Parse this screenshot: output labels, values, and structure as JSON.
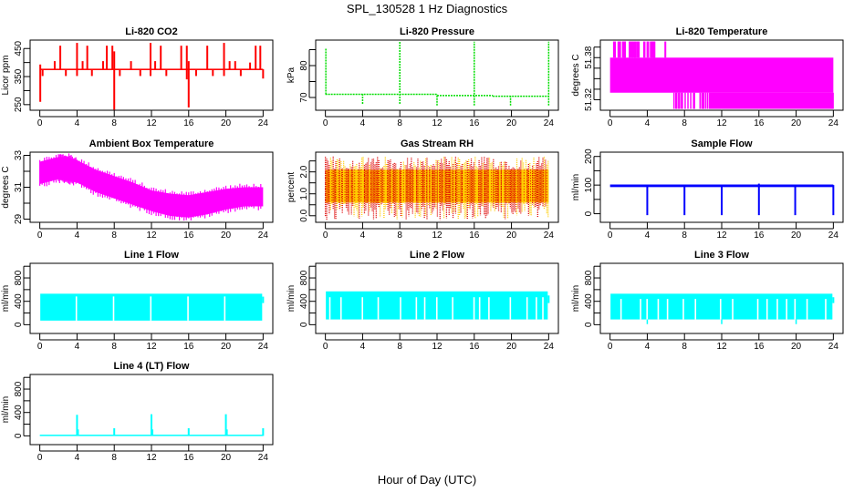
{
  "figure": {
    "title": "SPL_130528  1 Hz Diagnostics",
    "xlabel": "Hour of Day (UTC)"
  },
  "chart_data": [
    {
      "type": "line",
      "title": "Li-820 CO2",
      "ylabel": "Licor ppm",
      "color": "#ff0000",
      "xlim": [
        0,
        24
      ],
      "ylim": [
        230,
        480
      ],
      "xticks": [
        "0",
        "4",
        "8",
        "12",
        "16",
        "20",
        "24"
      ],
      "yticks": [
        250,
        300,
        350,
        400,
        450
      ],
      "ytick_labels": [
        "250",
        "",
        "350",
        "",
        "450"
      ],
      "band": {
        "low": 373,
        "high": 378
      },
      "spikes": [
        {
          "x": 0.05,
          "lo": 260,
          "hi": 393
        },
        {
          "x": 0.3,
          "lo": 352,
          "hi": 376
        },
        {
          "x": 1.6,
          "lo": 375,
          "hi": 405
        },
        {
          "x": 2.2,
          "lo": 375,
          "hi": 460
        },
        {
          "x": 2.8,
          "lo": 352,
          "hi": 376
        },
        {
          "x": 4.0,
          "lo": 352,
          "hi": 470
        },
        {
          "x": 4.6,
          "lo": 375,
          "hi": 405
        },
        {
          "x": 5.1,
          "lo": 375,
          "hi": 460
        },
        {
          "x": 5.6,
          "lo": 352,
          "hi": 376
        },
        {
          "x": 6.8,
          "lo": 375,
          "hi": 405
        },
        {
          "x": 7.2,
          "lo": 375,
          "hi": 460
        },
        {
          "x": 7.8,
          "lo": 375,
          "hi": 460
        },
        {
          "x": 8.0,
          "lo": 232,
          "hi": 440
        },
        {
          "x": 8.6,
          "lo": 352,
          "hi": 376
        },
        {
          "x": 9.8,
          "lo": 375,
          "hi": 405
        },
        {
          "x": 10.8,
          "lo": 352,
          "hi": 376
        },
        {
          "x": 11.9,
          "lo": 352,
          "hi": 470
        },
        {
          "x": 12.4,
          "lo": 375,
          "hi": 405
        },
        {
          "x": 13.0,
          "lo": 375,
          "hi": 460
        },
        {
          "x": 13.6,
          "lo": 352,
          "hi": 376
        },
        {
          "x": 15.2,
          "lo": 375,
          "hi": 460
        },
        {
          "x": 15.8,
          "lo": 340,
          "hi": 460
        },
        {
          "x": 16.0,
          "lo": 240,
          "hi": 405
        },
        {
          "x": 16.8,
          "lo": 352,
          "hi": 376
        },
        {
          "x": 18.0,
          "lo": 375,
          "hi": 460
        },
        {
          "x": 18.6,
          "lo": 352,
          "hi": 376
        },
        {
          "x": 19.8,
          "lo": 352,
          "hi": 470
        },
        {
          "x": 20.4,
          "lo": 375,
          "hi": 405
        },
        {
          "x": 21.0,
          "lo": 375,
          "hi": 405
        },
        {
          "x": 21.6,
          "lo": 352,
          "hi": 376
        },
        {
          "x": 22.6,
          "lo": 375,
          "hi": 400
        },
        {
          "x": 23.2,
          "lo": 375,
          "hi": 460
        },
        {
          "x": 23.7,
          "lo": 375,
          "hi": 460
        },
        {
          "x": 24.0,
          "lo": 343,
          "hi": 376
        }
      ]
    },
    {
      "type": "line",
      "title": "Li-820 Pressure",
      "ylabel": "kPa",
      "color": "#00dd00",
      "xlim": [
        0,
        24
      ],
      "ylim": [
        66,
        88
      ],
      "xticks": [
        "0",
        "4",
        "8",
        "12",
        "16",
        "20",
        "24"
      ],
      "yticks": [
        70,
        75,
        80,
        85
      ],
      "ytick_labels": [
        "70",
        "",
        "80",
        ""
      ],
      "segments": [
        {
          "x0": 0.0,
          "x1": 12.0,
          "y": 71.0
        },
        {
          "x0": 12.0,
          "x1": 18.0,
          "y": 70.6
        },
        {
          "x0": 18.0,
          "x1": 24.0,
          "y": 70.4
        }
      ],
      "spikes": [
        {
          "x": 0.05,
          "lo": 71,
          "hi": 85.5
        },
        {
          "x": 4.0,
          "lo": 68,
          "hi": 71
        },
        {
          "x": 8.0,
          "lo": 68,
          "hi": 87.5
        },
        {
          "x": 12.0,
          "lo": 67.5,
          "hi": 71
        },
        {
          "x": 16.0,
          "lo": 67.5,
          "hi": 87.5
        },
        {
          "x": 19.9,
          "lo": 67.5,
          "hi": 70.5
        },
        {
          "x": 24.0,
          "lo": 67.5,
          "hi": 87.5
        }
      ]
    },
    {
      "type": "area",
      "title": "Li-820 Temperature",
      "ylabel": "degrees C",
      "color": "#ff00ff",
      "xlim": [
        0,
        24
      ],
      "ylim": [
        51.305,
        51.405
      ],
      "xticks": [
        "0",
        "4",
        "8",
        "12",
        "16",
        "20",
        "24"
      ],
      "yticks": [
        51.32,
        51.335,
        51.35,
        51.365,
        51.38,
        51.395
      ],
      "ytick_labels": [
        "51.32",
        "",
        "",
        "",
        "51.38",
        ""
      ],
      "band": {
        "x0": 0.0,
        "x1": 24.0,
        "low": 51.33,
        "high": 51.38
      },
      "upper_spikes": {
        "x0": 0.2,
        "x1": 6.6,
        "to": 51.403
      },
      "lower_region": {
        "x0": 6.6,
        "x1": 24.0,
        "to": 51.307
      }
    },
    {
      "type": "area",
      "title": "Ambient Box Temperature",
      "ylabel": "degrees C",
      "color": "#ff00ff",
      "xlim": [
        0,
        24
      ],
      "ylim": [
        28.8,
        33.2
      ],
      "xticks": [
        "0",
        "4",
        "8",
        "12",
        "16",
        "20",
        "24"
      ],
      "yticks": [
        29,
        30,
        31,
        32,
        33
      ],
      "ytick_labels": [
        "29",
        "",
        "31",
        "",
        "33"
      ],
      "envelope": [
        {
          "x": 0,
          "low": 31.2,
          "high": 32.6
        },
        {
          "x": 2,
          "low": 31.5,
          "high": 32.9
        },
        {
          "x": 3,
          "low": 31.4,
          "high": 32.9
        },
        {
          "x": 4,
          "low": 31.3,
          "high": 32.7
        },
        {
          "x": 6,
          "low": 30.7,
          "high": 32.1
        },
        {
          "x": 8,
          "low": 30.3,
          "high": 31.7
        },
        {
          "x": 10,
          "low": 29.9,
          "high": 31.3
        },
        {
          "x": 12,
          "low": 29.5,
          "high": 30.8
        },
        {
          "x": 14,
          "low": 29.2,
          "high": 30.6
        },
        {
          "x": 16,
          "low": 29.1,
          "high": 30.5
        },
        {
          "x": 18,
          "low": 29.3,
          "high": 30.7
        },
        {
          "x": 20,
          "low": 29.6,
          "high": 30.9
        },
        {
          "x": 22,
          "low": 29.8,
          "high": 31.0
        },
        {
          "x": 24,
          "low": 29.8,
          "high": 31.0
        }
      ]
    },
    {
      "type": "area",
      "title": "Gas Stream RH",
      "ylabel": "percent",
      "color": "#ffcc00",
      "color2": "#dd0000",
      "xlim": [
        0,
        24
      ],
      "ylim": [
        -0.3,
        2.9
      ],
      "xticks": [
        "0",
        "4",
        "8",
        "12",
        "16",
        "20",
        "24"
      ],
      "yticks": [
        0.0,
        0.5,
        1.0,
        1.5,
        2.0,
        2.5
      ],
      "ytick_labels": [
        "0.0",
        "",
        "1.0",
        "",
        "2.0",
        ""
      ],
      "band": {
        "low": 0.6,
        "high": 2.1
      },
      "range": {
        "min": -0.2,
        "max": 2.7
      }
    },
    {
      "type": "line",
      "title": "Sample Flow",
      "ylabel": "ml/min",
      "color": "#0000ff",
      "xlim": [
        0,
        24
      ],
      "ylim": [
        -30,
        215
      ],
      "xticks": [
        "0",
        "4",
        "8",
        "12",
        "16",
        "20",
        "24"
      ],
      "yticks": [
        0,
        50,
        100,
        150,
        200
      ],
      "ytick_labels": [
        "0",
        "",
        "100",
        "",
        "200"
      ],
      "band": {
        "low": 93,
        "high": 102
      },
      "spikes": [
        {
          "x": 4.0,
          "lo": -5,
          "hi": 100
        },
        {
          "x": 8.0,
          "lo": -5,
          "hi": 100
        },
        {
          "x": 12.0,
          "lo": -5,
          "hi": 100
        },
        {
          "x": 16.0,
          "lo": -5,
          "hi": 105
        },
        {
          "x": 19.9,
          "lo": -5,
          "hi": 100
        },
        {
          "x": 24.0,
          "lo": -5,
          "hi": 100
        }
      ]
    },
    {
      "type": "area",
      "title": "Line 1 Flow",
      "ylabel": "ml/min",
      "color": "#00ffff",
      "xlim": [
        0,
        24
      ],
      "ylim": [
        -150,
        1050
      ],
      "xticks": [
        "0",
        "4",
        "8",
        "12",
        "16",
        "20",
        "24"
      ],
      "yticks": [
        0,
        200,
        400,
        600,
        800,
        1000
      ],
      "ytick_labels": [
        "0",
        "",
        "400",
        "",
        "800",
        ""
      ],
      "band": {
        "x0": 0.05,
        "x1": 23.9,
        "low": 70,
        "high": 530
      },
      "gaps": [
        3.85,
        7.85,
        11.85,
        15.85,
        19.8
      ],
      "tail": {
        "x": 24.0,
        "low": 370,
        "high": 480
      }
    },
    {
      "type": "area",
      "title": "Line 2 Flow",
      "ylabel": "ml/min",
      "color": "#00ffff",
      "xlim": [
        0,
        24
      ],
      "ylim": [
        -150,
        1050
      ],
      "xticks": [
        "0",
        "4",
        "8",
        "12",
        "16",
        "20",
        "24"
      ],
      "yticks": [
        0,
        200,
        400,
        600,
        800,
        1000
      ],
      "ytick_labels": [
        "0",
        "",
        "400",
        "",
        "800",
        ""
      ],
      "band": {
        "x0": 0.05,
        "x1": 23.9,
        "low": 90,
        "high": 570
      },
      "notch_level": 470,
      "gaps": [
        0.4,
        1.6,
        3.9,
        5.6,
        8.0,
        9.7,
        10.6,
        11.9,
        13.6,
        15.9,
        16.5,
        17.5,
        19.8,
        21.6,
        22.6,
        23.3
      ],
      "tail": {
        "x": 24.0,
        "low": 370,
        "high": 500
      }
    },
    {
      "type": "area",
      "title": "Line 3 Flow",
      "ylabel": "ml/min",
      "color": "#00ffff",
      "xlim": [
        0,
        24
      ],
      "ylim": [
        -150,
        1050
      ],
      "xticks": [
        "0",
        "4",
        "8",
        "12",
        "16",
        "20",
        "24"
      ],
      "yticks": [
        0,
        200,
        400,
        600,
        800,
        1000
      ],
      "ytick_labels": [
        "0",
        "",
        "400",
        "",
        "800",
        ""
      ],
      "band": {
        "x0": 0.05,
        "x1": 23.9,
        "low": 90,
        "high": 530
      },
      "notch_level": 440,
      "gaps": [
        1.1,
        3.2,
        3.9,
        5.1,
        6.1,
        7.8,
        9.1,
        11.8,
        13.1,
        15.8,
        16.8,
        17.9,
        18.9,
        19.8,
        21.1,
        23.1
      ],
      "dips": [
        4.0,
        12.0,
        20.0
      ],
      "tail": {
        "x": 24.0,
        "low": 370,
        "high": 470
      }
    },
    {
      "type": "line",
      "title": "Line 4 (LT) Flow",
      "ylabel": "ml/min",
      "color": "#00ffff",
      "xlim": [
        0,
        24
      ],
      "ylim": [
        -150,
        1050
      ],
      "xticks": [
        "0",
        "4",
        "8",
        "12",
        "16",
        "20",
        "24"
      ],
      "yticks": [
        0,
        200,
        400,
        600,
        800,
        1000
      ],
      "ytick_labels": [
        "0",
        "",
        "400",
        "",
        "800",
        ""
      ],
      "band": {
        "low": 0,
        "high": 20
      },
      "spikes": [
        {
          "x": 4.0,
          "lo": 0,
          "hi": 360
        },
        {
          "x": 4.1,
          "lo": 0,
          "hi": 110
        },
        {
          "x": 8.0,
          "lo": 0,
          "hi": 130
        },
        {
          "x": 12.0,
          "lo": 0,
          "hi": 370
        },
        {
          "x": 12.1,
          "lo": 0,
          "hi": 110
        },
        {
          "x": 16.0,
          "lo": 0,
          "hi": 130
        },
        {
          "x": 20.0,
          "lo": 0,
          "hi": 370
        },
        {
          "x": 20.1,
          "lo": 0,
          "hi": 110
        },
        {
          "x": 24.0,
          "lo": 0,
          "hi": 130
        }
      ]
    }
  ]
}
